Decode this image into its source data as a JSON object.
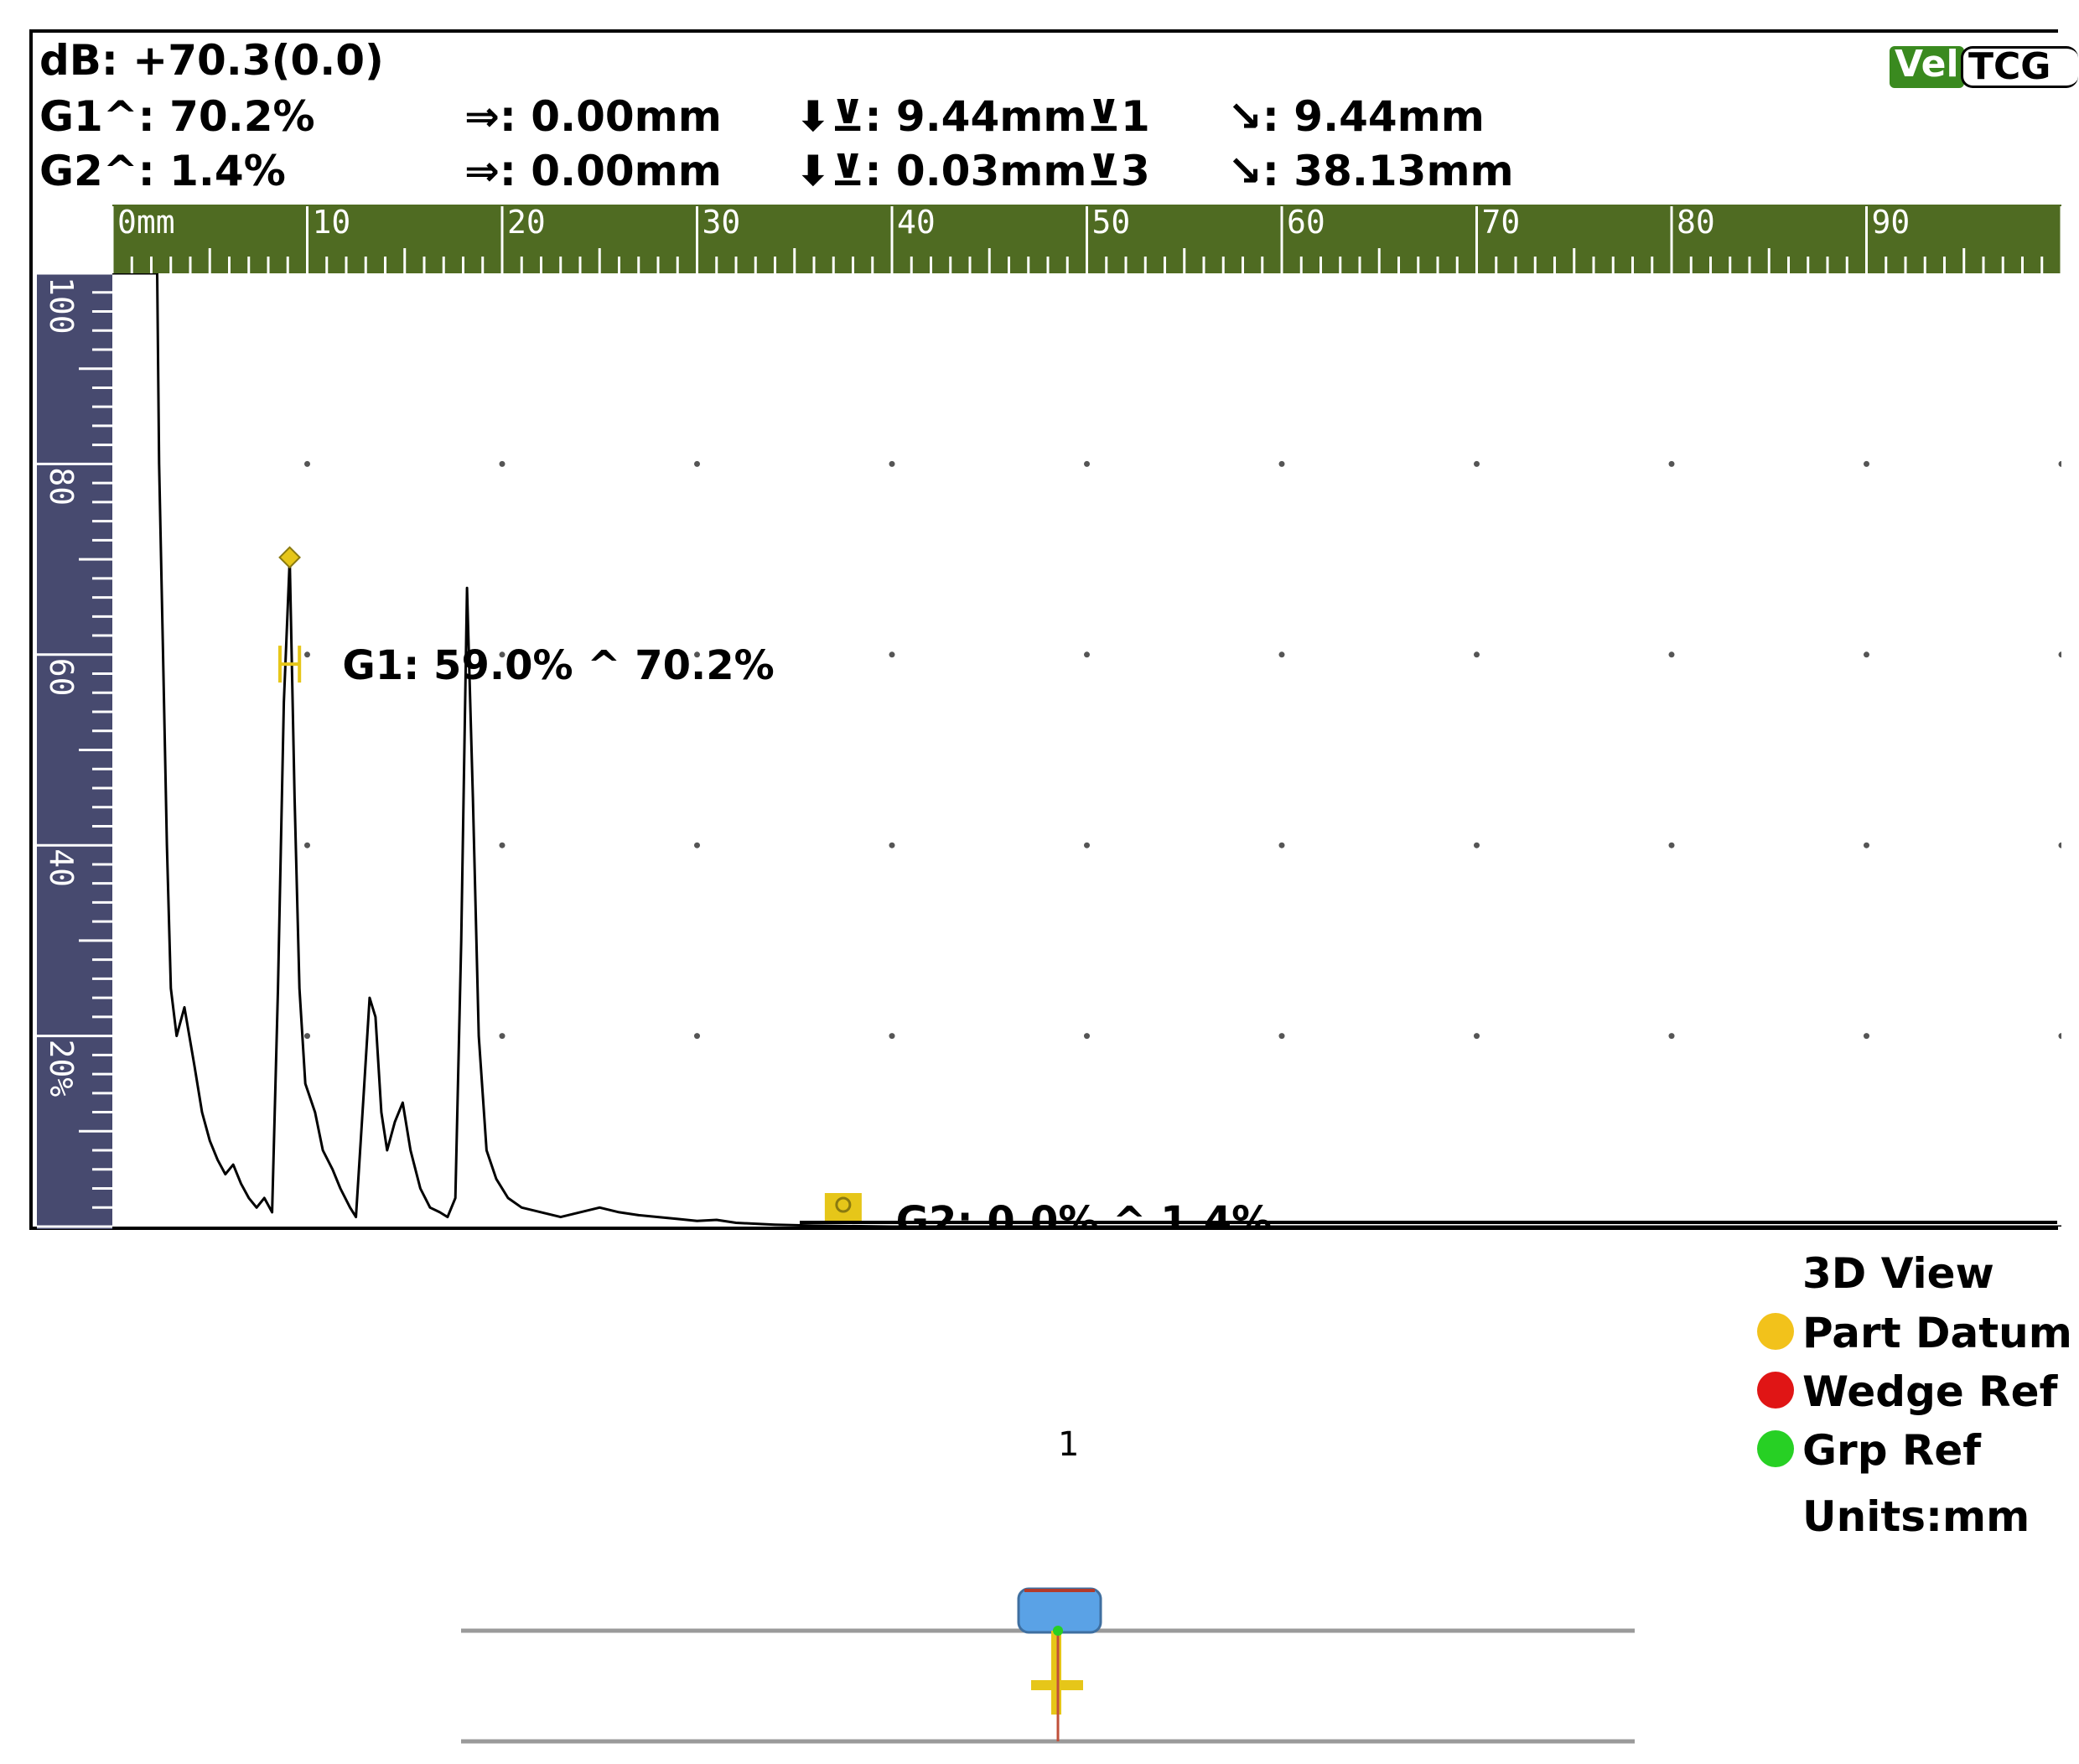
{
  "header": {
    "db_readout": "dB: +70.3(0.0)",
    "badges": {
      "vel": "Vel",
      "tcg": "TCG"
    }
  },
  "readouts": {
    "gate1": {
      "peak_amplitude": "G1^: 70.2%",
      "sound_path_offset": "⇒: 0.00mm",
      "depth": "⬇⊻: 9.44mm⊻1",
      "surface_distance": "↘: 9.44mm"
    },
    "gate2": {
      "peak_amplitude": "G2^: 1.4%",
      "sound_path_offset": "⇒: 0.00mm",
      "depth": "⬇⊻: 0.03mm⊻3",
      "surface_distance": "↘: 38.13mm"
    }
  },
  "ruler": {
    "labels": [
      "0mm",
      "10",
      "20",
      "30",
      "40",
      "50",
      "60",
      "70",
      "80",
      "90"
    ],
    "color": "#4f6b22"
  },
  "amplitude_scale": {
    "labels": [
      "100",
      "80",
      "60",
      "40",
      "20%"
    ],
    "color": "#474a6f"
  },
  "gate_labels": {
    "gate1": "G1: 59.0% ^ 70.2%",
    "gate2": "G2: 0.0% ^ 1.4%"
  },
  "gate_color": "#e6c619",
  "chart_data": {
    "type": "line",
    "xlim": [
      0,
      100
    ],
    "ylim": [
      0,
      100
    ],
    "grid": true,
    "x_ticks": [
      0,
      10,
      20,
      30,
      40,
      50,
      60,
      70,
      80,
      90
    ],
    "y_ticks": [
      20,
      40,
      60,
      80,
      100
    ],
    "points": [
      [
        0,
        100
      ],
      [
        2.3,
        100
      ],
      [
        2.4,
        80
      ],
      [
        2.6,
        60
      ],
      [
        2.8,
        40
      ],
      [
        3.0,
        25
      ],
      [
        3.3,
        20
      ],
      [
        3.7,
        23
      ],
      [
        4.2,
        17
      ],
      [
        4.6,
        12
      ],
      [
        5.0,
        9
      ],
      [
        5.4,
        7
      ],
      [
        5.8,
        5.5
      ],
      [
        6.2,
        6.5
      ],
      [
        6.6,
        4.5
      ],
      [
        7.0,
        3
      ],
      [
        7.4,
        2
      ],
      [
        7.8,
        3
      ],
      [
        8.2,
        1.5
      ],
      [
        8.5,
        25
      ],
      [
        8.8,
        55
      ],
      [
        9.1,
        70
      ],
      [
        9.35,
        45
      ],
      [
        9.6,
        25
      ],
      [
        9.9,
        15
      ],
      [
        10.4,
        12
      ],
      [
        10.8,
        8
      ],
      [
        11.3,
        6
      ],
      [
        11.7,
        4
      ],
      [
        12.2,
        2
      ],
      [
        12.5,
        1
      ],
      [
        12.9,
        14
      ],
      [
        13.2,
        24
      ],
      [
        13.5,
        22
      ],
      [
        13.8,
        12
      ],
      [
        14.1,
        8
      ],
      [
        14.5,
        11
      ],
      [
        14.9,
        13
      ],
      [
        15.3,
        8
      ],
      [
        15.8,
        4
      ],
      [
        16.3,
        2
      ],
      [
        16.8,
        1.5
      ],
      [
        17.2,
        1
      ],
      [
        17.6,
        3
      ],
      [
        17.9,
        30
      ],
      [
        18.2,
        67
      ],
      [
        18.5,
        45
      ],
      [
        18.8,
        20
      ],
      [
        19.2,
        8
      ],
      [
        19.7,
        5
      ],
      [
        20.3,
        3
      ],
      [
        21,
        2
      ],
      [
        22,
        1.5
      ],
      [
        23,
        1
      ],
      [
        24,
        1.5
      ],
      [
        25,
        2
      ],
      [
        26,
        1.5
      ],
      [
        27,
        1.2
      ],
      [
        28,
        1
      ],
      [
        29,
        0.8
      ],
      [
        30,
        0.6
      ],
      [
        31,
        0.7
      ],
      [
        32,
        0.4
      ],
      [
        33,
        0.3
      ],
      [
        34,
        0.2
      ],
      [
        36,
        0.1
      ],
      [
        40,
        0
      ],
      [
        50,
        0
      ],
      [
        70,
        0
      ],
      [
        100,
        0
      ]
    ]
  },
  "view3d_legend": {
    "title": "3D View",
    "items": [
      {
        "label": "Part Datum",
        "color": "#f2c21b"
      },
      {
        "label": "Wedge Ref",
        "color": "#e01515"
      },
      {
        "label": "Grp Ref",
        "color": "#27d024"
      }
    ],
    "units": "Units:mm"
  },
  "view3d": {
    "element_number": "1"
  }
}
